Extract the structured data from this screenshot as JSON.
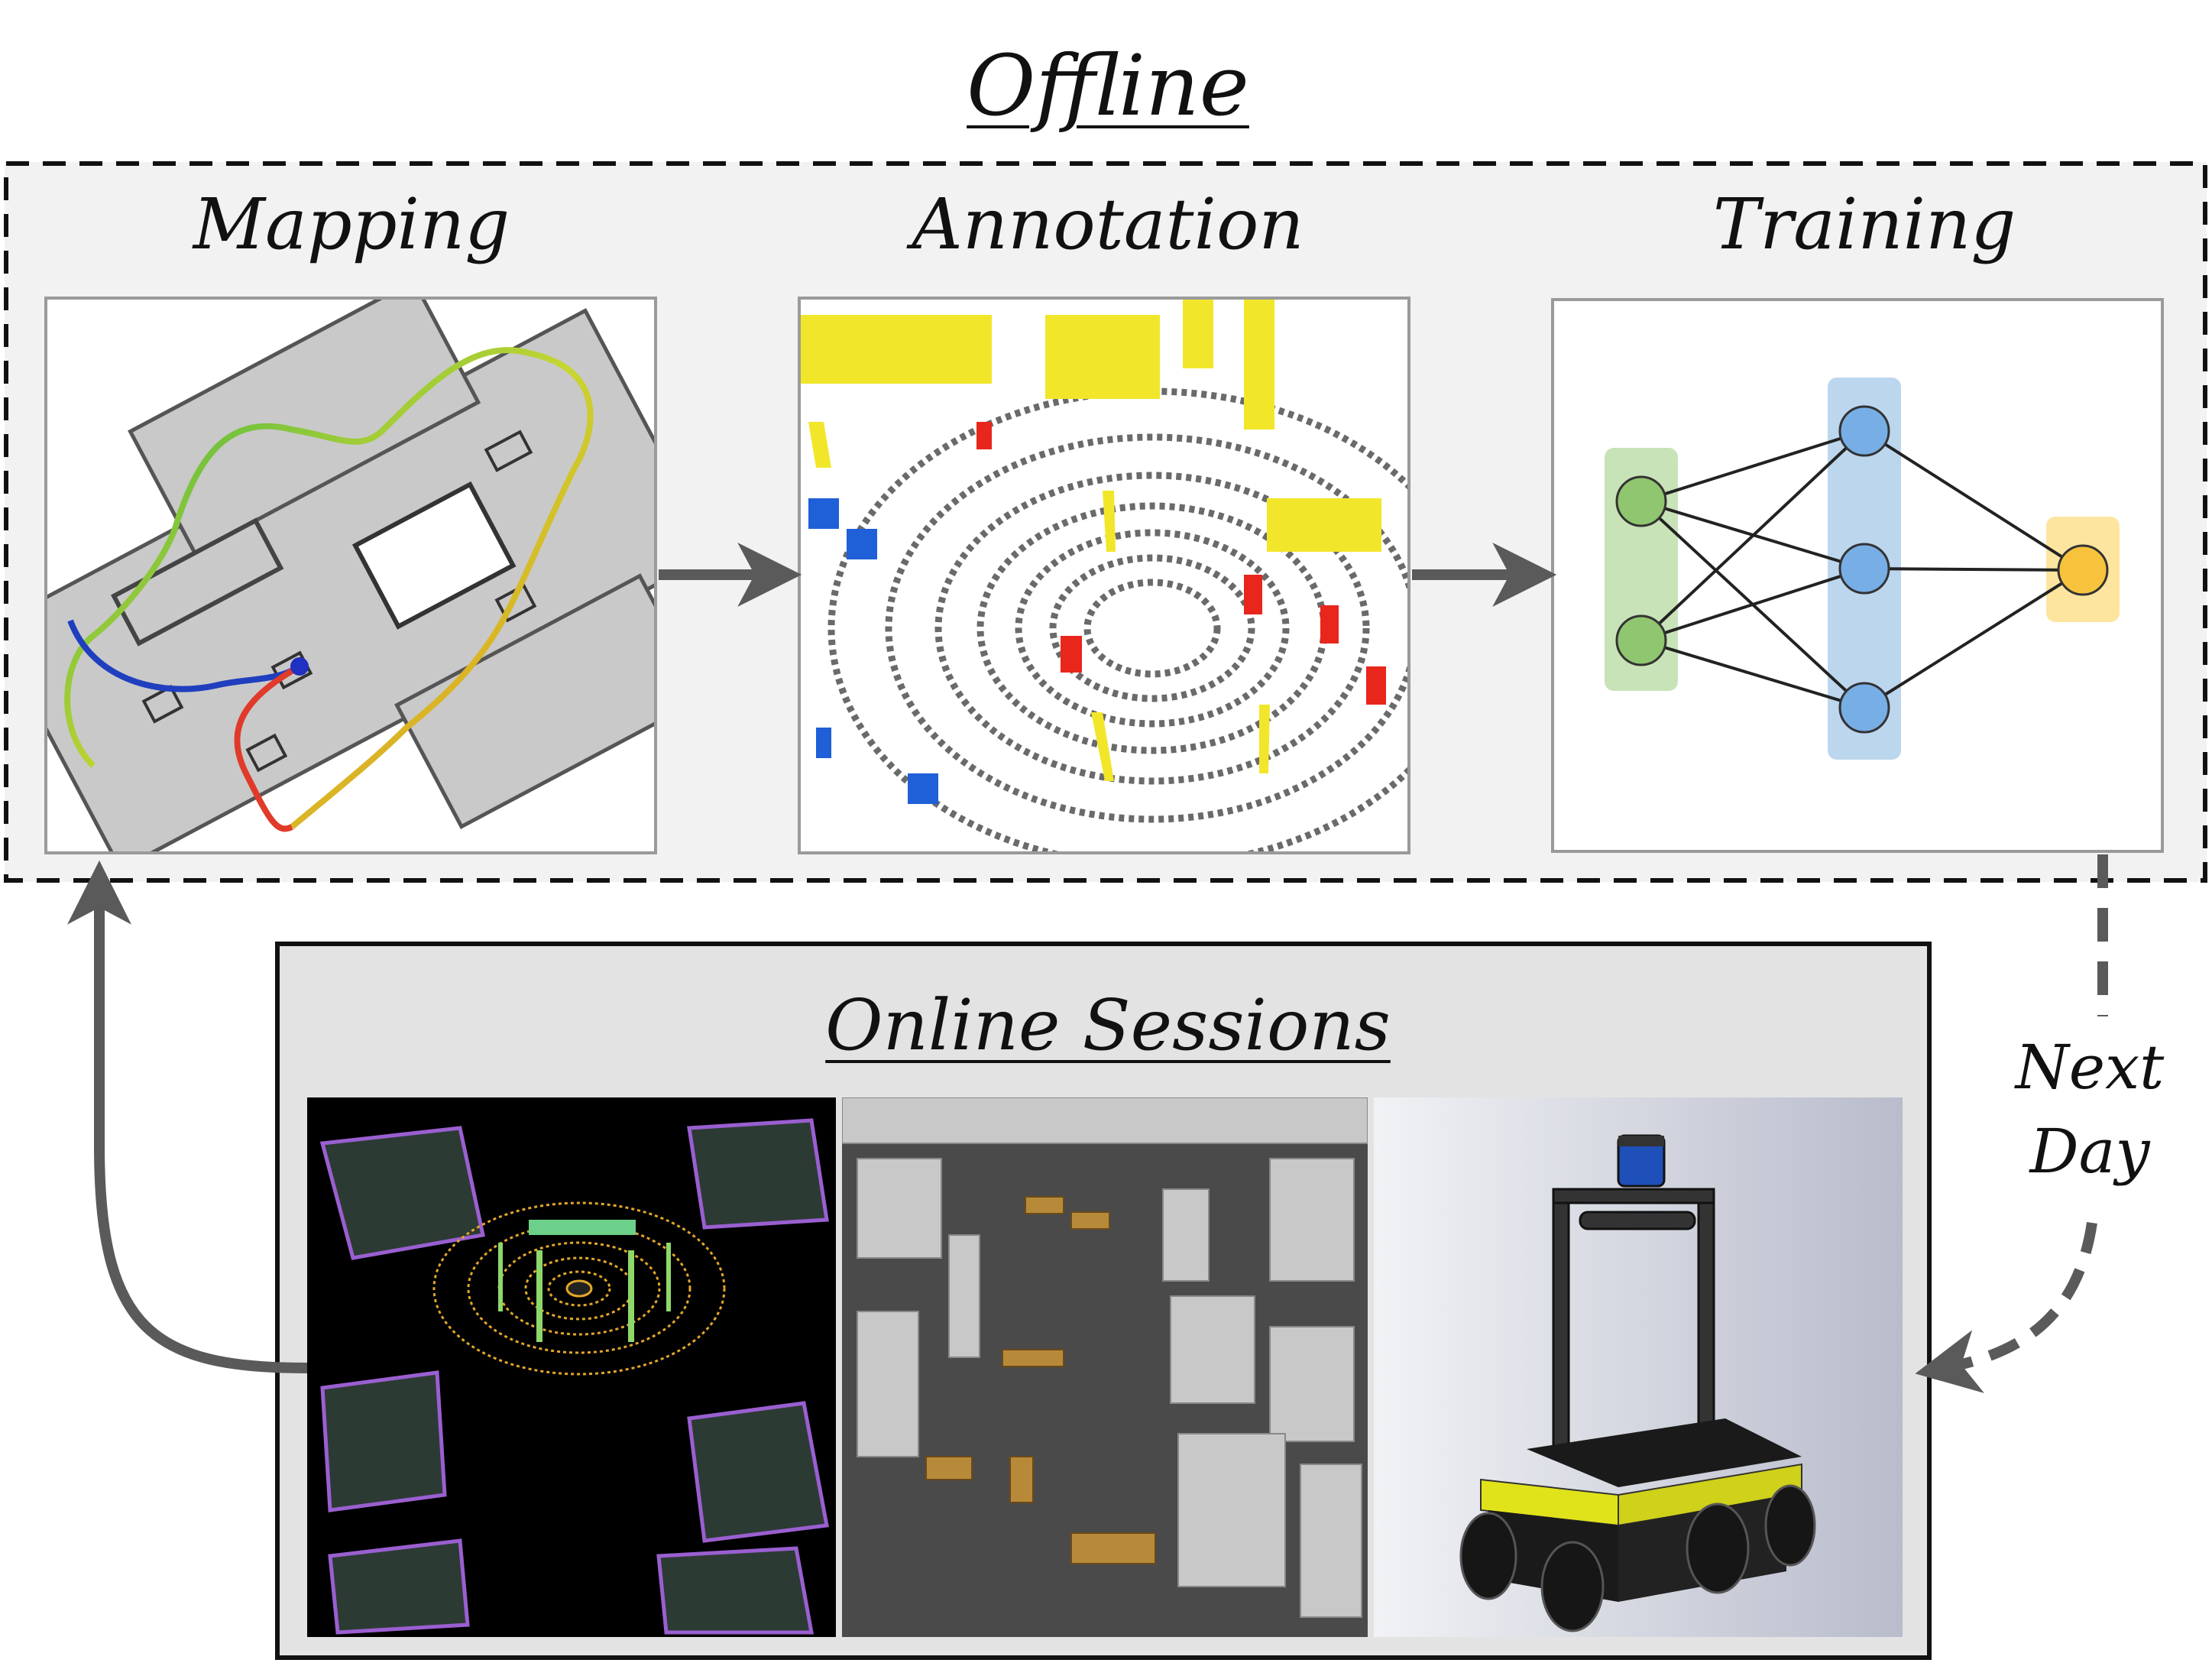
{
  "labels": {
    "offline": "Offline",
    "mapping": "Mapping",
    "annotation": "Annotation",
    "training": "Training",
    "online_sessions": "Online Sessions",
    "next_day_line1": "Next",
    "next_day_line2": "Day"
  },
  "colors": {
    "offline_bg": "#f2f2f2",
    "online_bg": "#e3e3e3",
    "arrow": "#5a5a5a",
    "nn_input": "#c9e3b8",
    "nn_hidden": "#bcd6ee",
    "nn_output": "#fde5a0"
  },
  "network": {
    "input_nodes": 2,
    "hidden_nodes": 3,
    "output_nodes": 1
  }
}
